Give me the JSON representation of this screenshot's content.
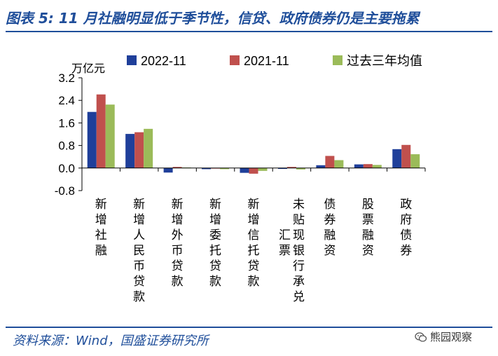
{
  "header": {
    "title": "图表 5:  11 月社融明显低于季节性，信贷、政府债券仍是主要拖累"
  },
  "footer": {
    "source": "资料来源：Wind，国盛证券研究所",
    "watermark": "熊园观察"
  },
  "chart_data": {
    "type": "bar",
    "title": "11 月社融明显低于季节性，信贷、政府债券仍是主要拖累",
    "ylabel": "万亿元",
    "xlabel": "",
    "ylim": [
      -0.8,
      3.2
    ],
    "yticks": [
      3.2,
      2.4,
      1.6,
      0.8,
      0.0,
      -0.8
    ],
    "ytick_labels": [
      "3.2",
      "2.4",
      "1.6",
      "0.8",
      "0.0",
      "-0.8"
    ],
    "legend_position": "top",
    "categories": [
      [
        "新",
        "增",
        "社",
        "融"
      ],
      [
        "新",
        "增",
        "人",
        "民",
        "币",
        "贷",
        "款"
      ],
      [
        "新",
        "增",
        "外",
        "币",
        "贷",
        "款"
      ],
      [
        "新",
        "增",
        "委",
        "托",
        "贷",
        "款"
      ],
      [
        "新",
        "增",
        "信",
        "托",
        "贷",
        "款"
      ],
      [
        "未",
        "贴",
        "现",
        "银",
        "行",
        "承",
        "兑",
        "汇",
        "票"
      ],
      [
        "债",
        "券",
        "融",
        "资"
      ],
      [
        "股",
        "票",
        "融",
        "资"
      ],
      [
        "政",
        "府",
        "债",
        "券"
      ]
    ],
    "series": [
      {
        "name": "2022-11",
        "color": "#1F3F9A",
        "values": [
          1.99,
          1.21,
          -0.16,
          -0.04,
          -0.17,
          -0.03,
          0.1,
          0.13,
          0.67
        ]
      },
      {
        "name": "2021-11",
        "color": "#C0504D",
        "values": [
          2.61,
          1.27,
          0.04,
          -0.02,
          -0.2,
          0.04,
          0.43,
          0.14,
          0.82
        ]
      },
      {
        "name": "过去三年均值",
        "color": "#9BBB59",
        "values": [
          2.25,
          1.39,
          0.02,
          -0.04,
          -0.1,
          -0.05,
          0.28,
          0.11,
          0.49
        ]
      }
    ]
  }
}
